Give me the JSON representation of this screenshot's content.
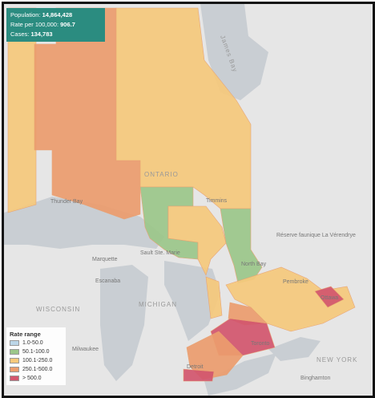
{
  "info": {
    "population_label": "Population:",
    "population": "14,864,428",
    "rate_label": "Rate per 100,000:",
    "rate": "906.7",
    "cases_label": "Cases:",
    "cases": "134,783"
  },
  "legend": {
    "title": "Rate range",
    "items": [
      {
        "label": "1.0-50.0",
        "color": "#bcd6e8"
      },
      {
        "label": "50.1-100.0",
        "color": "#9cc78a"
      },
      {
        "label": "100.1-250.0",
        "color": "#f6c97c"
      },
      {
        "label": "250.1-500.0",
        "color": "#ec9d6e"
      },
      {
        "label": "> 500.0",
        "color": "#d3566e"
      }
    ]
  },
  "map_labels": [
    "James Bay",
    "ONTARIO",
    "Thunder Bay",
    "Timmins",
    "Sault Ste. Marie",
    "Marquette",
    "Escanaba",
    "WISCONSIN",
    "MICHIGAN",
    "North Bay",
    "Pembroke",
    "Ottawa",
    "Toronto",
    "Detroit",
    "Milwaukee",
    "NEW YORK",
    "Binghamton",
    "Réserve faunique La Vérendrye"
  ]
}
